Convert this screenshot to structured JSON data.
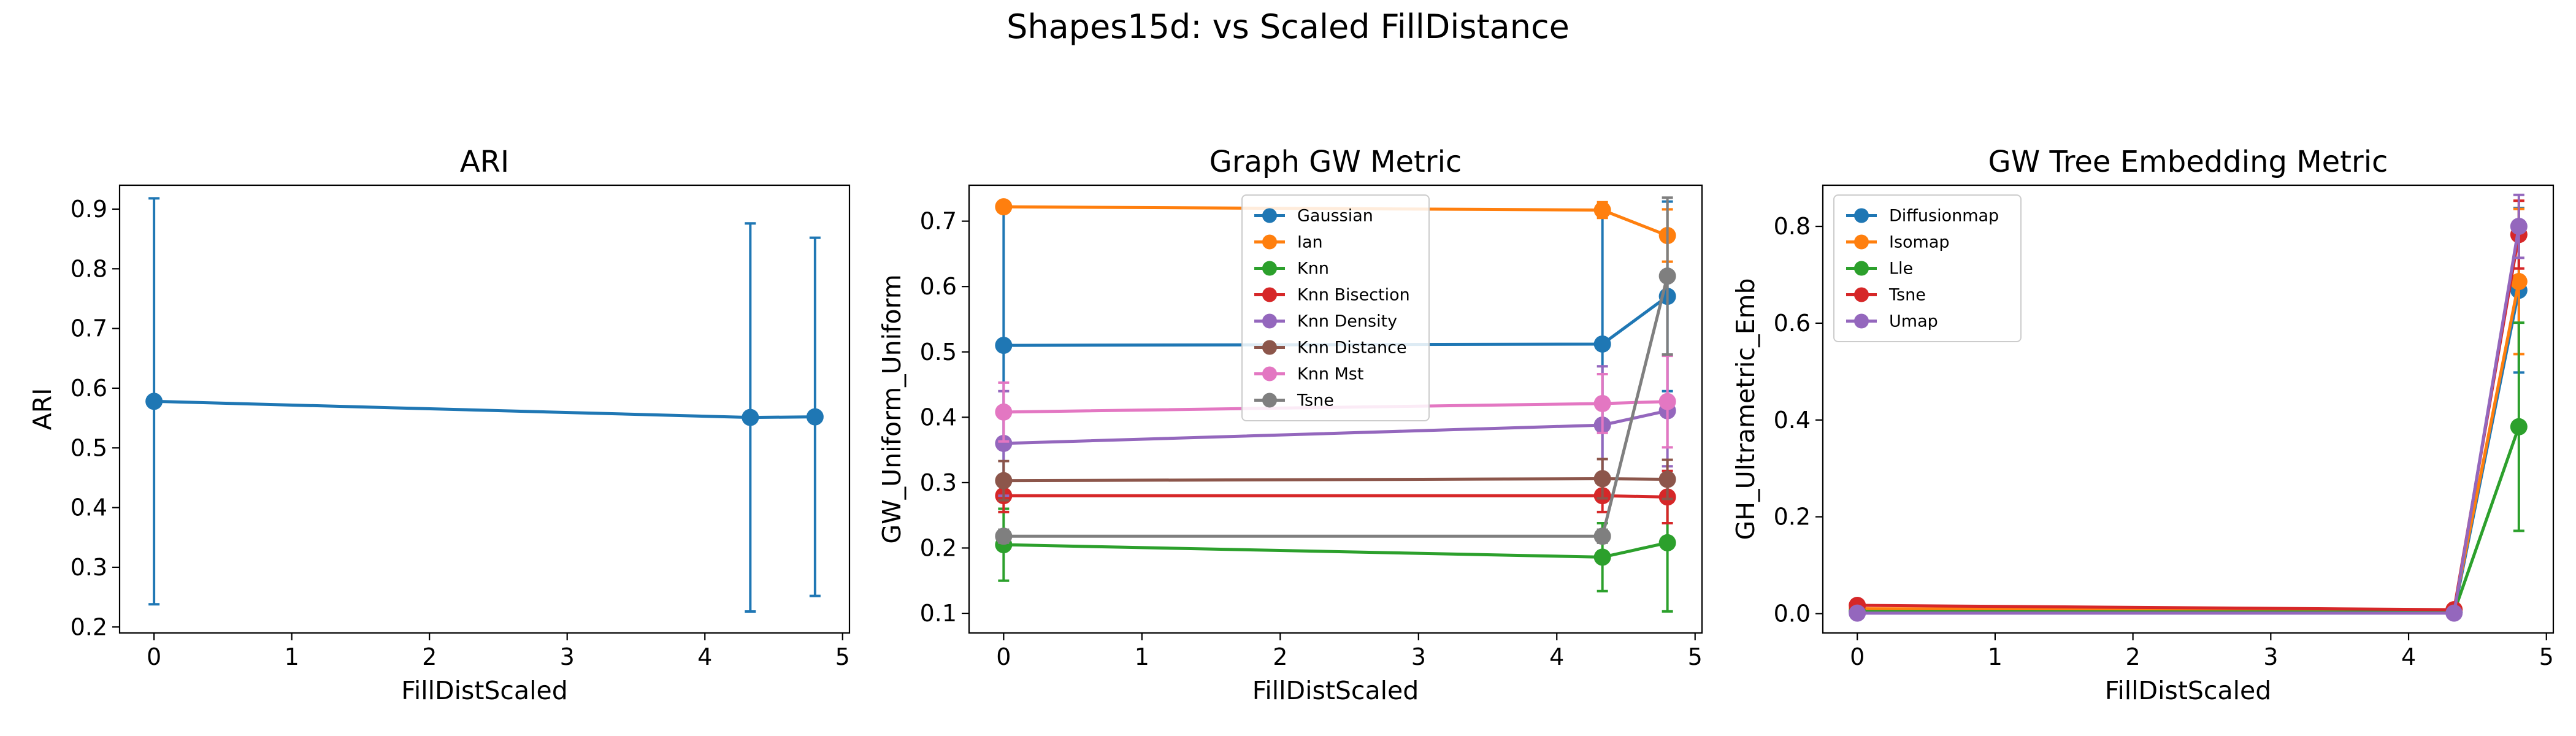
{
  "figure": {
    "suptitle": "Shapes15d: vs Scaled FillDistance"
  },
  "chart_data": [
    {
      "type": "line",
      "title": "ARI",
      "xlabel": "FillDistScaled",
      "ylabel": "ARI",
      "xlim": [
        -0.25,
        5.05
      ],
      "ylim": [
        0.19,
        0.94
      ],
      "xticks": [
        0,
        1,
        2,
        3,
        4,
        5
      ],
      "yticks": [
        0.2,
        0.3,
        0.4,
        0.5,
        0.6,
        0.7,
        0.8,
        0.9
      ],
      "ytick_decimals": 1,
      "grid": false,
      "legend": null,
      "x": [
        0,
        4.33,
        4.8
      ],
      "series": [
        {
          "name": "",
          "color": "#1f77b4",
          "values": [
            0.578,
            0.551,
            0.552
          ],
          "errors": [
            0.34,
            0.325,
            0.3
          ]
        }
      ]
    },
    {
      "type": "line",
      "title": "Graph GW Metric",
      "xlabel": "FillDistScaled",
      "ylabel": "GW_Uniform_Uniform",
      "xlim": [
        -0.25,
        5.05
      ],
      "ylim": [
        0.07,
        0.755
      ],
      "xticks": [
        0,
        1,
        2,
        3,
        4,
        5
      ],
      "yticks": [
        0.1,
        0.2,
        0.3,
        0.4,
        0.5,
        0.6,
        0.7
      ],
      "ytick_decimals": 1,
      "grid": false,
      "legend": "upper center",
      "x": [
        0,
        4.33,
        4.8
      ],
      "series": [
        {
          "name": "Gaussian",
          "color": "#1f77b4",
          "values": [
            0.51,
            0.512,
            0.585
          ],
          "errors": [
            0.21,
            0.205,
            0.145
          ]
        },
        {
          "name": "Ian",
          "color": "#ff7f0e",
          "values": [
            0.722,
            0.717,
            0.678
          ],
          "errors": [
            0.008,
            0.012,
            0.04
          ]
        },
        {
          "name": "Knn",
          "color": "#2ca02c",
          "values": [
            0.205,
            0.186,
            0.208
          ],
          "errors": [
            0.055,
            0.052,
            0.105
          ]
        },
        {
          "name": "Knn Bisection",
          "color": "#d62728",
          "values": [
            0.28,
            0.28,
            0.278
          ],
          "errors": [
            0.025,
            0.025,
            0.04
          ]
        },
        {
          "name": "Knn Density",
          "color": "#9467bd",
          "values": [
            0.36,
            0.388,
            0.41
          ],
          "errors": [
            0.08,
            0.09,
            0.085
          ]
        },
        {
          "name": "Knn Distance",
          "color": "#8c564b",
          "values": [
            0.303,
            0.306,
            0.305
          ],
          "errors": [
            0.03,
            0.03,
            0.03
          ]
        },
        {
          "name": "Knn Mst",
          "color": "#e377c2",
          "values": [
            0.408,
            0.421,
            0.424
          ],
          "errors": [
            0.045,
            0.045,
            0.07
          ]
        },
        {
          "name": "Tsne",
          "color": "#7f7f7f",
          "values": [
            0.218,
            0.218,
            0.616
          ],
          "errors": [
            0.01,
            0.01,
            0.12
          ]
        }
      ]
    },
    {
      "type": "line",
      "title": "GW Tree Embedding Metric",
      "xlabel": "FillDistScaled",
      "ylabel": "GH_Ultrametric_Emb",
      "xlim": [
        -0.25,
        5.05
      ],
      "ylim": [
        -0.04,
        0.885
      ],
      "xticks": [
        0,
        1,
        2,
        3,
        4,
        5
      ],
      "yticks": [
        0.0,
        0.2,
        0.4,
        0.6,
        0.8
      ],
      "ytick_decimals": 1,
      "grid": false,
      "legend": "upper left",
      "x": [
        0,
        4.33,
        4.8
      ],
      "series": [
        {
          "name": "Diffusionmap",
          "color": "#1f77b4",
          "values": [
            0.005,
            0.003,
            0.668
          ],
          "errors": [
            0.004,
            0.004,
            0.17
          ]
        },
        {
          "name": "Isomap",
          "color": "#ff7f0e",
          "values": [
            0.01,
            0.008,
            0.686
          ],
          "errors": [
            0.005,
            0.005,
            0.15
          ]
        },
        {
          "name": "Lle",
          "color": "#2ca02c",
          "values": [
            0.004,
            0.003,
            0.386
          ],
          "errors": [
            0.004,
            0.004,
            0.215
          ]
        },
        {
          "name": "Tsne",
          "color": "#d62728",
          "values": [
            0.017,
            0.008,
            0.783
          ],
          "errors": [
            0.008,
            0.006,
            0.07
          ]
        },
        {
          "name": "Umap",
          "color": "#9467bd",
          "values": [
            0.001,
            0.001,
            0.8
          ],
          "errors": [
            0.003,
            0.003,
            0.065
          ]
        }
      ]
    }
  ]
}
